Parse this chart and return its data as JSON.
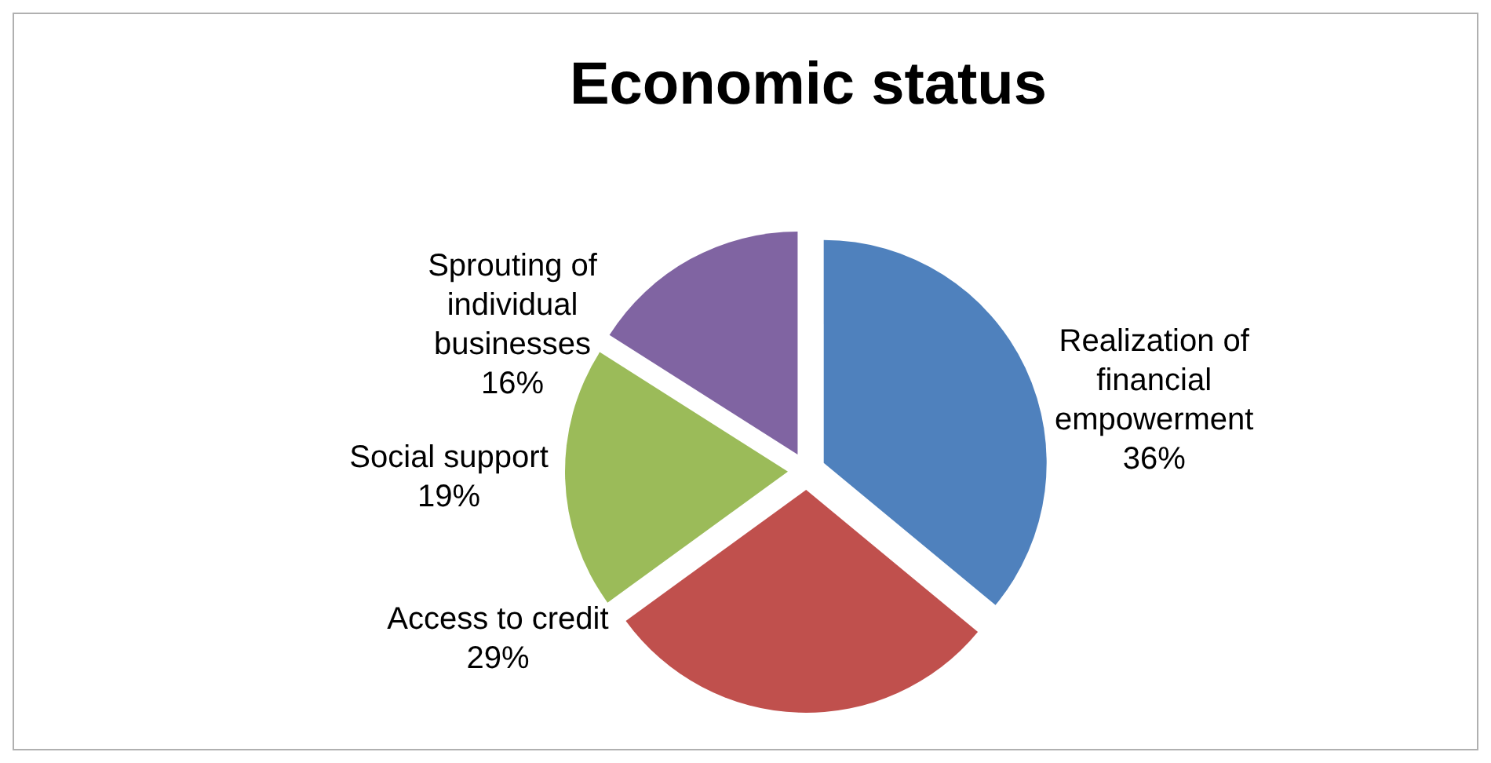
{
  "chart_data": {
    "type": "pie",
    "title": "Economic status",
    "categories": [
      "Realization of financial empowerment",
      "Access to credit",
      "Social support",
      "Sprouting of individual businesses"
    ],
    "values": [
      36,
      29,
      19,
      16
    ],
    "value_labels": [
      "36%",
      "29%",
      "19%",
      "16%"
    ],
    "colors": [
      "#4f81bd",
      "#c0504d",
      "#9bbb59",
      "#8064a2"
    ]
  }
}
